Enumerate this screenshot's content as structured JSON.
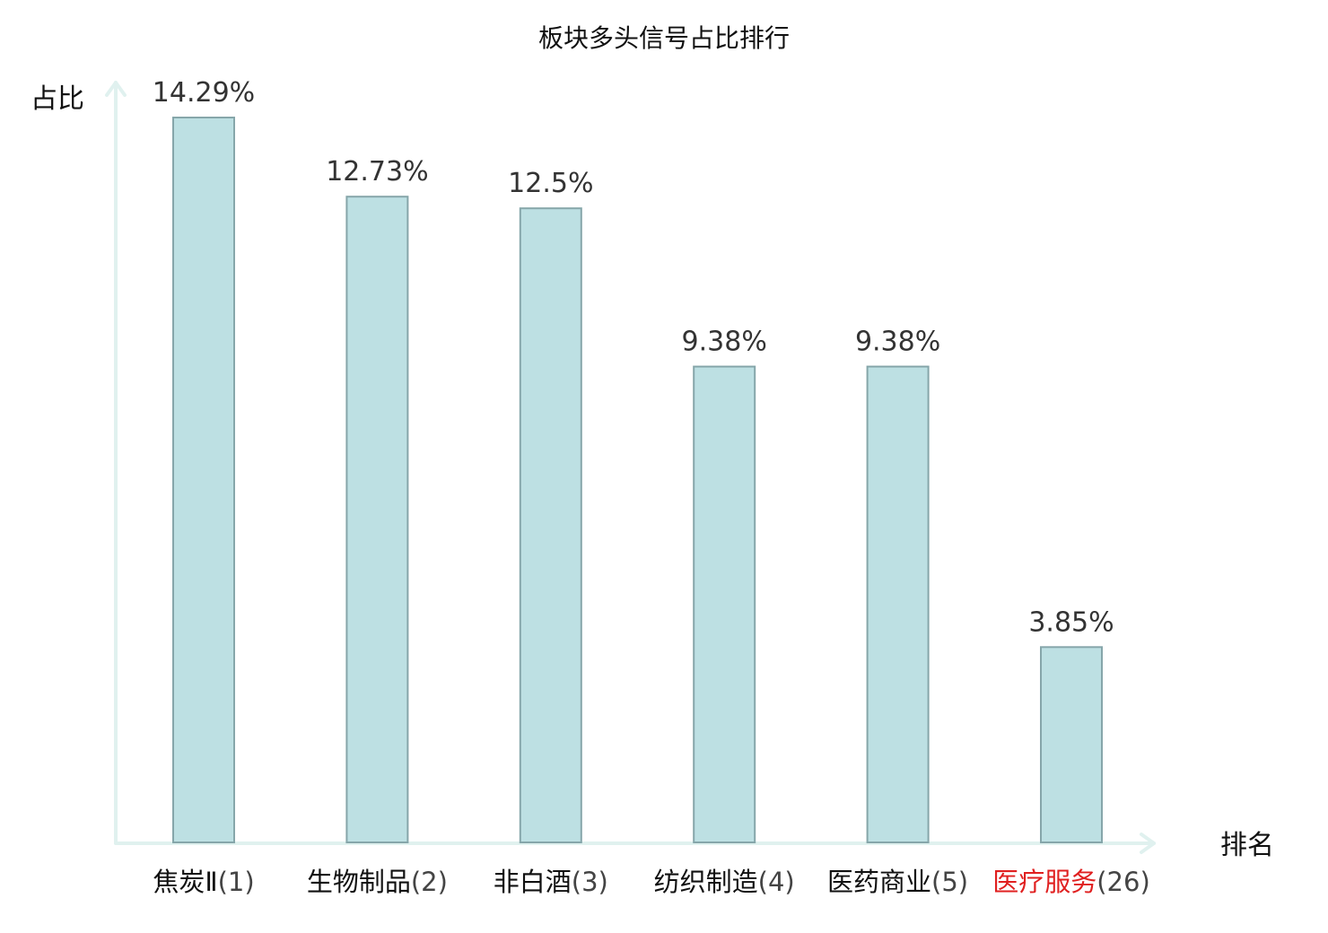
{
  "chart_data": {
    "type": "bar",
    "title": "板块多头信号占比排行",
    "ylabel": "占比",
    "xlabel": "排名",
    "categories": [
      {
        "name": "焦炭Ⅱ",
        "rank": "(1)"
      },
      {
        "name": "生物制品",
        "rank": "(2)"
      },
      {
        "name": "非白酒",
        "rank": "(3)"
      },
      {
        "name": "纺织制造",
        "rank": "(4)"
      },
      {
        "name": "医药商业",
        "rank": "(5)"
      },
      {
        "name": "医疗服务",
        "rank": "(26)"
      }
    ],
    "values": [
      14.29,
      12.73,
      12.5,
      9.38,
      9.38,
      3.85
    ],
    "value_labels": [
      "14.29%",
      "12.73%",
      "12.5%",
      "9.38%",
      "9.38%",
      "3.85%"
    ],
    "highlight_index": 5,
    "ylim": [
      0,
      14.29
    ],
    "grid": false,
    "legend": "none"
  },
  "colors": {
    "bar_fill": "#bde0e3",
    "bar_stroke": "#86a6aa",
    "axis": "#e0f1ef",
    "highlight_text": "#e02020",
    "text": "#111111",
    "value_text": "#333333"
  }
}
